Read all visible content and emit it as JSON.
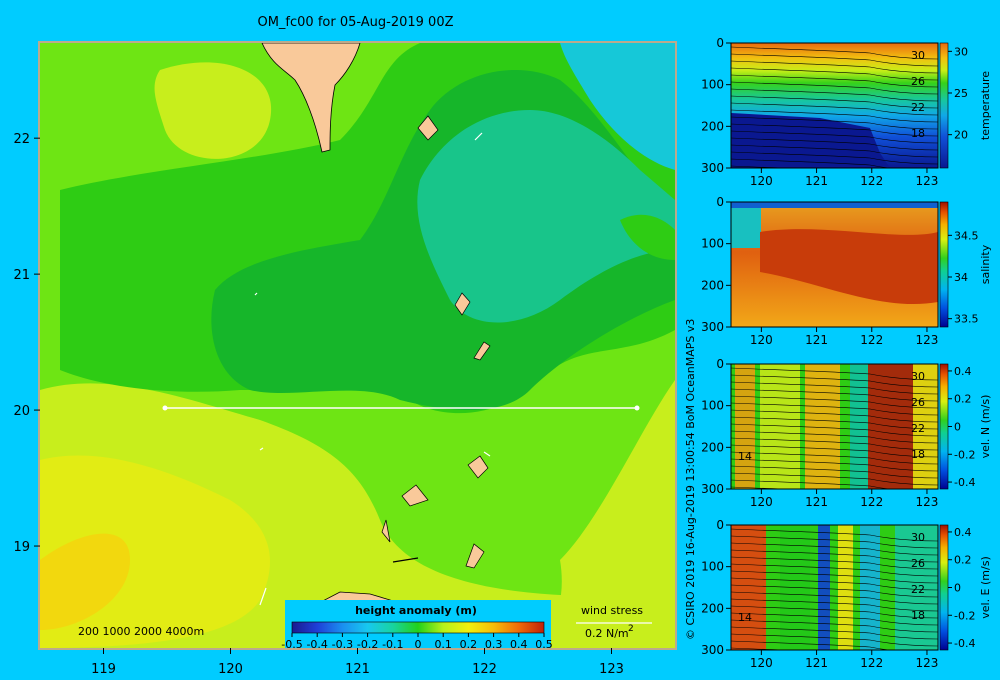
{
  "title": "OM_fc00 for 05-Aug-2019 00Z",
  "credit": "© CSIRO 2019   16-Aug-2019 13:00:54  BoM OceanMAPS v3",
  "colors": {
    "background": "#00ccff",
    "frame": "#bcaa8c",
    "land": "#f9c99a",
    "shoal": "#c8ae91"
  },
  "chart_data": [
    {
      "type": "heatmap",
      "x": [
        119,
        120,
        121,
        122,
        123
      ],
      "y": [
        19,
        20,
        21,
        22
      ],
      "xlim": [
        118.5,
        123.5
      ],
      "ylim": [
        18.25,
        22.7
      ],
      "colorbar": {
        "label": "height anomaly (m)",
        "ticks": [
          "-0.5",
          "-0.4",
          "-0.3",
          "-0.2",
          "-0.1",
          "0",
          "0.1",
          "0.2",
          "0.3",
          "0.4",
          "0.5"
        ],
        "range": [
          -0.5,
          0.5
        ]
      },
      "depth_contours": "200  1000  2000  4000m",
      "wind_stress": {
        "label": "wind stress",
        "scale": "0.2 N/m",
        "scale_sup": "2"
      },
      "section_line": {
        "lat": 20,
        "lon": [
          119.5,
          123.2
        ]
      }
    },
    {
      "type": "heatmap",
      "ylabel": "temperature",
      "x": [
        120,
        121,
        122,
        123
      ],
      "y_depth": [
        0,
        100,
        200,
        300
      ],
      "colorbar_ticks": [
        "30",
        "25",
        "20"
      ],
      "colorbar_range": [
        16,
        31
      ],
      "contour_labels": [
        "30",
        "26",
        "22",
        "18"
      ]
    },
    {
      "type": "heatmap",
      "ylabel": "salinity",
      "x": [
        120,
        121,
        122,
        123
      ],
      "y_depth": [
        0,
        100,
        200,
        300
      ],
      "colorbar_ticks": [
        "34.5",
        "34",
        "33.5"
      ],
      "colorbar_range": [
        33.4,
        34.9
      ]
    },
    {
      "type": "heatmap",
      "ylabel": "vel. N (m/s)",
      "x": [
        120,
        121,
        122,
        123
      ],
      "y_depth": [
        0,
        100,
        200,
        300
      ],
      "colorbar_ticks": [
        "0.4",
        "0.2",
        "0",
        "-0.2",
        "-0.4"
      ],
      "colorbar_range": [
        -0.45,
        0.45
      ],
      "contour_labels": [
        "30",
        "26",
        "22",
        "18",
        "14"
      ]
    },
    {
      "type": "heatmap",
      "ylabel": "vel. E (m/s)",
      "x": [
        120,
        121,
        122,
        123
      ],
      "y_depth": [
        0,
        100,
        200,
        300
      ],
      "colorbar_ticks": [
        "0.4",
        "0.2",
        "0",
        "-0.2",
        "-0.4"
      ],
      "colorbar_range": [
        -0.45,
        0.45
      ],
      "contour_labels": [
        "30",
        "26",
        "22",
        "18",
        "14"
      ]
    }
  ]
}
